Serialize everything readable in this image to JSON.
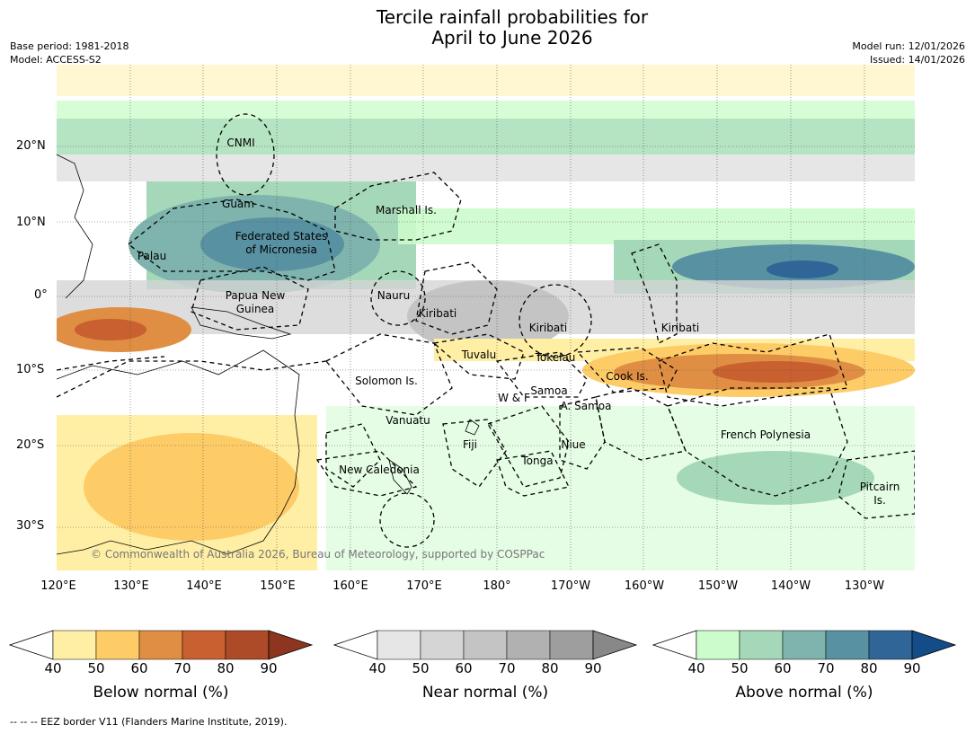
{
  "title_line1": "Tercile rainfall probabilities for",
  "title_line2": "April to June 2026",
  "meta_left": [
    "Base period: 1981-2018",
    "Model: ACCESS-S2"
  ],
  "meta_right": [
    "Model run: 12/01/2026",
    "Issued: 14/01/2026"
  ],
  "lat_labels": [
    "20°N",
    "10°N",
    "0°",
    "10°S",
    "20°S",
    "30°S"
  ],
  "lon_labels": [
    "120°E",
    "130°E",
    "140°E",
    "150°E",
    "160°E",
    "170°E",
    "180°",
    "170°W",
    "160°W",
    "150°W",
    "140°W",
    "130°W"
  ],
  "regions": [
    "CNMI",
    "Guam",
    "Marshall Is.",
    "Federated States",
    "of Micronesia",
    "Palau",
    "Papua New",
    "Guinea",
    "Nauru",
    "Kiribati",
    "Kiribati",
    "Kiribati",
    "Tuvalu",
    "Tokelau",
    "Cook Is.",
    "Solomon Is.",
    "W & F",
    "Samoa",
    "A. Samoa",
    "Vanuatu",
    "Fiji",
    "Niue",
    "French Polynesia",
    "Tonga",
    "New Caledonia",
    "Pitcairn",
    "Is."
  ],
  "copyright": "© Commonwealth of Australia 2026, Bureau of Meteorology, supported by COSPPac",
  "colorbars": [
    {
      "label": "Below normal (%)",
      "ticks": [
        "40",
        "50",
        "60",
        "70",
        "80",
        "90"
      ],
      "colors": [
        "#ffefa5",
        "#fdcc67",
        "#df8e43",
        "#c8602f",
        "#ad4b28",
        "#8e3520"
      ]
    },
    {
      "label": "Near normal (%)",
      "ticks": [
        "40",
        "50",
        "60",
        "70",
        "80",
        "90"
      ],
      "colors": [
        "#e6e6e6",
        "#d5d5d5",
        "#c4c4c4",
        "#b1b1b1",
        "#9e9e9e",
        "#888888"
      ]
    },
    {
      "label": "Above normal (%)",
      "ticks": [
        "40",
        "50",
        "60",
        "70",
        "80",
        "90"
      ],
      "colors": [
        "#ccfccc",
        "#a5d8b8",
        "#7fb3ad",
        "#5891a1",
        "#2f6697",
        "#134c86"
      ]
    }
  ],
  "footnote": "--  --  -- EEZ border V11 (Flanders Marine Institute, 2019)."
}
